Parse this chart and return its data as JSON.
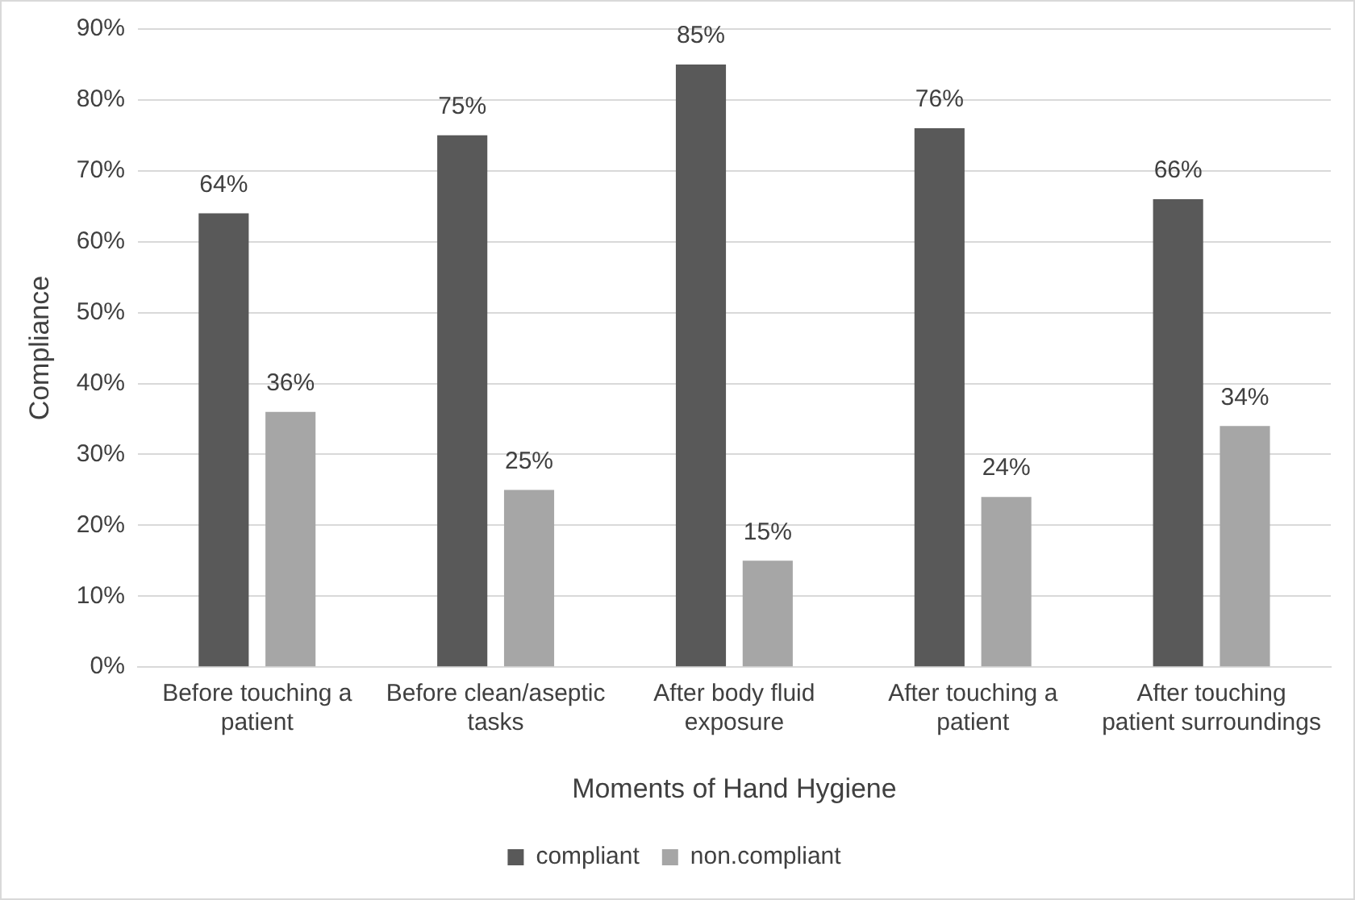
{
  "chart_data": {
    "type": "bar",
    "xlabel": "Moments of Hand Hygiene",
    "ylabel": "Compliance",
    "categories": [
      "Before touching a patient",
      "Before clean/aseptic tasks",
      "After body fluid exposure",
      "After touching a patient",
      "After touching patient surroundings"
    ],
    "series": [
      {
        "name": "compliant",
        "color": "#595959",
        "values": [
          64,
          75,
          85,
          76,
          66
        ],
        "value_labels": [
          "64%",
          "75%",
          "85%",
          "76%",
          "66%"
        ]
      },
      {
        "name": "non.compliant",
        "color": "#a6a6a6",
        "values": [
          36,
          25,
          15,
          24,
          34
        ],
        "value_labels": [
          "36%",
          "25%",
          "15%",
          "24%",
          "34%"
        ]
      }
    ],
    "ylim": [
      0,
      90
    ],
    "yticks": [
      {
        "value": 0,
        "label": "0%"
      },
      {
        "value": 10,
        "label": "10%"
      },
      {
        "value": 20,
        "label": "20%"
      },
      {
        "value": 30,
        "label": "30%"
      },
      {
        "value": 40,
        "label": "40%"
      },
      {
        "value": 50,
        "label": "50%"
      },
      {
        "value": 60,
        "label": "60%"
      },
      {
        "value": 70,
        "label": "70%"
      },
      {
        "value": 80,
        "label": "80%"
      },
      {
        "value": 90,
        "label": "90%"
      }
    ],
    "grid": "y",
    "legend": "bottom"
  }
}
